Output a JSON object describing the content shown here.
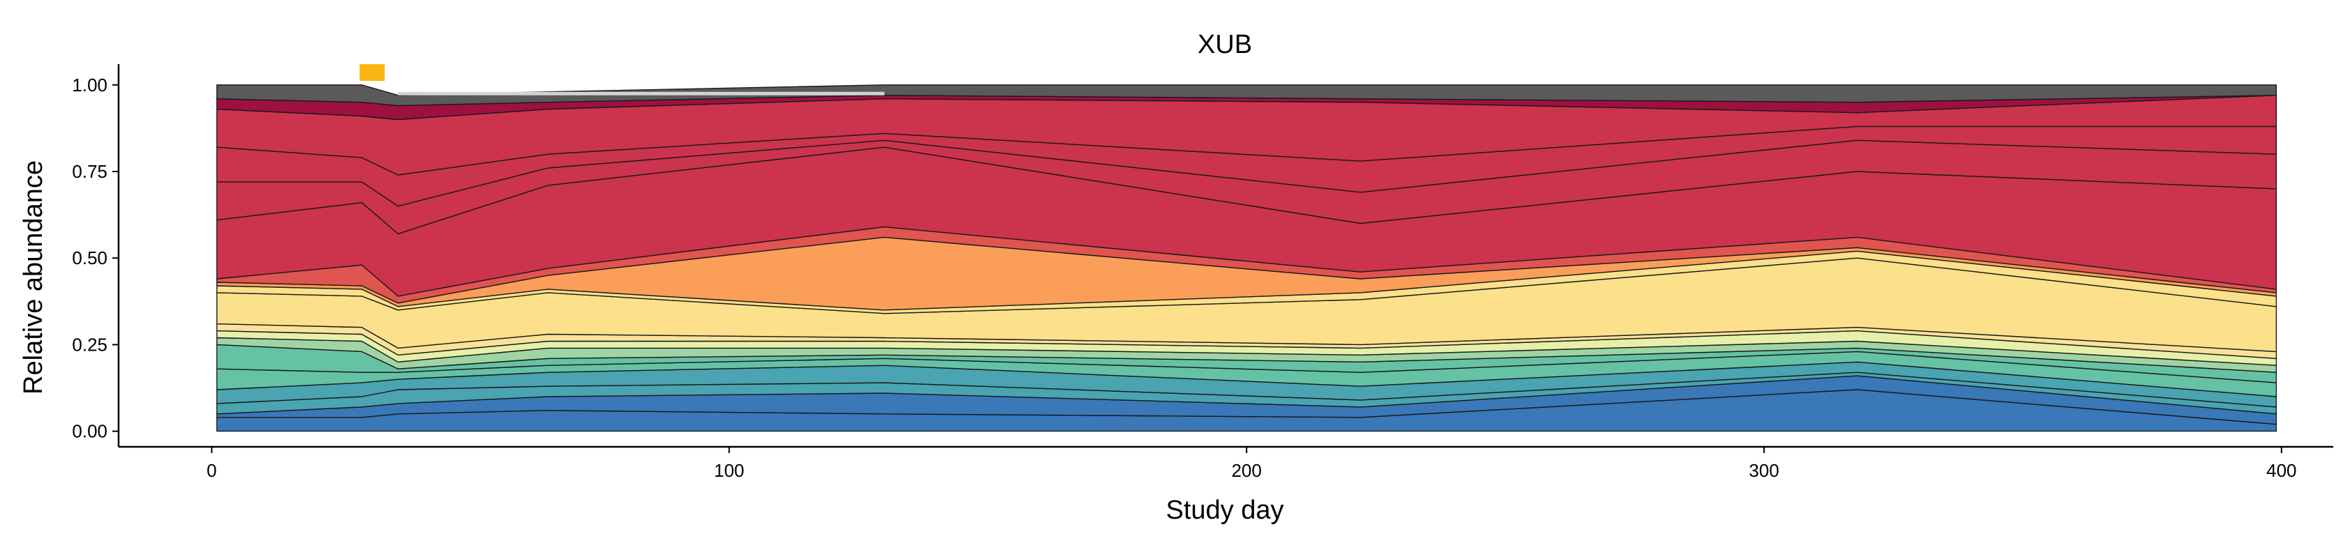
{
  "chart_data": {
    "type": "area",
    "title": "XUB",
    "xlabel": "Study day",
    "ylabel": "Relative abundance",
    "xlim": [
      -18,
      410
    ],
    "ylim": [
      -0.045,
      1.06
    ],
    "xticks": [
      0,
      100,
      200,
      300,
      400
    ],
    "xtick_labels": [
      "0",
      "100",
      "200",
      "300",
      "400"
    ],
    "yticks": [
      0,
      0.25,
      0.5,
      0.75,
      1.0
    ],
    "ytick_labels": [
      "0.00",
      "0.25",
      "0.50",
      "0.75",
      "1.00"
    ],
    "grid": false,
    "legend": "none",
    "x": [
      1,
      29,
      36,
      65,
      130,
      222,
      318,
      399
    ],
    "layers": [
      {
        "color": "#3a78b8",
        "upper": [
          0.04,
          0.04,
          0.05,
          0.06,
          0.05,
          0.04,
          0.12,
          0.02
        ]
      },
      {
        "color": "#3a78b8",
        "upper": [
          0.05,
          0.07,
          0.08,
          0.1,
          0.11,
          0.07,
          0.16,
          0.05
        ]
      },
      {
        "color": "#4aa4b1",
        "upper": [
          0.08,
          0.1,
          0.12,
          0.13,
          0.14,
          0.09,
          0.17,
          0.07
        ]
      },
      {
        "color": "#4aa4b1",
        "upper": [
          0.12,
          0.14,
          0.15,
          0.17,
          0.19,
          0.13,
          0.2,
          0.1
        ]
      },
      {
        "color": "#66c2a5",
        "upper": [
          0.18,
          0.17,
          0.17,
          0.19,
          0.21,
          0.17,
          0.23,
          0.14
        ]
      },
      {
        "color": "#66c2a5",
        "upper": [
          0.25,
          0.23,
          0.18,
          0.21,
          0.22,
          0.2,
          0.24,
          0.17
        ]
      },
      {
        "color": "#9fd5a4",
        "upper": [
          0.27,
          0.26,
          0.2,
          0.24,
          0.24,
          0.22,
          0.26,
          0.19
        ]
      },
      {
        "color": "#e6f0a8",
        "upper": [
          0.29,
          0.28,
          0.22,
          0.26,
          0.26,
          0.24,
          0.29,
          0.21
        ]
      },
      {
        "color": "#fae29a",
        "upper": [
          0.31,
          0.3,
          0.24,
          0.28,
          0.27,
          0.25,
          0.3,
          0.23
        ]
      },
      {
        "color": "#fde08b",
        "upper": [
          0.4,
          0.39,
          0.35,
          0.4,
          0.34,
          0.38,
          0.5,
          0.36
        ]
      },
      {
        "color": "#fde08b",
        "upper": [
          0.42,
          0.41,
          0.36,
          0.41,
          0.35,
          0.4,
          0.52,
          0.39
        ]
      },
      {
        "color": "#fb9e59",
        "upper": [
          0.43,
          0.42,
          0.37,
          0.45,
          0.56,
          0.44,
          0.53,
          0.4
        ]
      },
      {
        "color": "#e05550",
        "upper": [
          0.44,
          0.48,
          0.39,
          0.47,
          0.59,
          0.46,
          0.56,
          0.41
        ]
      },
      {
        "color": "#cc334d",
        "upper": [
          0.61,
          0.66,
          0.57,
          0.71,
          0.82,
          0.6,
          0.75,
          0.7
        ]
      },
      {
        "color": "#cc334d",
        "upper": [
          0.72,
          0.72,
          0.65,
          0.76,
          0.84,
          0.69,
          0.84,
          0.8
        ]
      },
      {
        "color": "#cc334d",
        "upper": [
          0.82,
          0.79,
          0.74,
          0.8,
          0.86,
          0.78,
          0.88,
          0.88
        ]
      },
      {
        "color": "#cc334d",
        "upper": [
          0.93,
          0.91,
          0.9,
          0.93,
          0.96,
          0.95,
          0.92,
          0.97
        ]
      },
      {
        "color": "#9e1040",
        "upper": [
          0.96,
          0.95,
          0.94,
          0.95,
          0.97,
          0.96,
          0.95,
          0.97
        ]
      },
      {
        "color": "#5a5a5a",
        "upper": [
          1.0,
          1.0,
          0.97,
          0.98,
          1.0,
          1.0,
          1.0,
          1.0
        ]
      }
    ],
    "light_segment": {
      "color": "#d3d3d3",
      "x": [
        36,
        130
      ],
      "y": [
        0.97,
        0.98
      ]
    },
    "marker": {
      "x": 31,
      "color": "#fbb512"
    }
  }
}
